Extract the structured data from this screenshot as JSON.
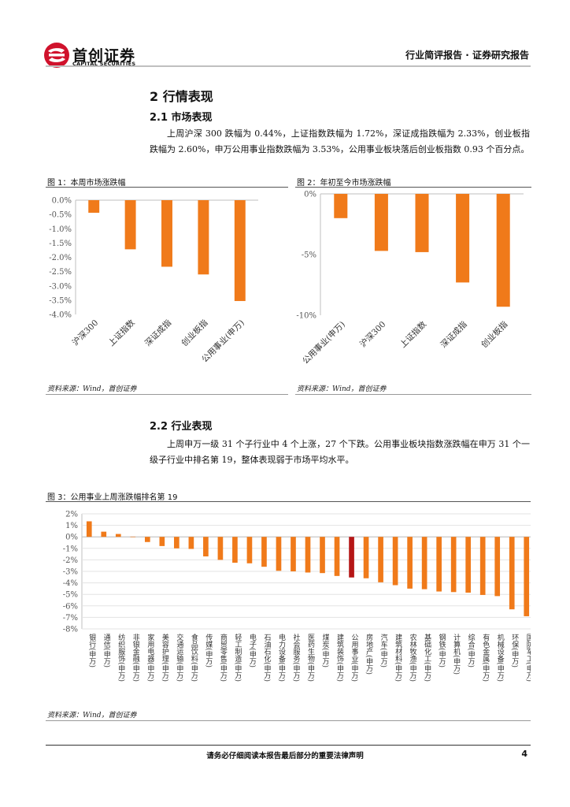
{
  "header": {
    "logo_cn": "首创证券",
    "logo_en": "CAPITAL SECURITIES",
    "report_type": "行业简评报告 · 证券研究报告",
    "brand_color": "#d0122c"
  },
  "section2": {
    "title": "2 行情表现"
  },
  "section2_1": {
    "title": "2.1 市场表现",
    "paragraph": "上周沪深 300 跌幅为 0.44%，上证指数跌幅为 1.72%，深证成指跌幅为 2.33%，创业板指跌幅为 2.60%，申万公用事业指数跌幅为 3.53%，公用事业板块落后创业板指数 0.93 个百分点。"
  },
  "section2_2": {
    "title": "2.2 行业表现",
    "paragraph": "上周申万一级 31 个子行业中 4 个上涨，27 个下跌。公用事业板块指数涨跌幅在申万 31 个一级子行业中排名第 19，整体表现弱于市场平均水平。"
  },
  "figures": {
    "fig1_title": "图 1：本周市场涨跌幅",
    "fig2_title": "图 2：年初至今市场涨跌幅",
    "fig3_title": "图 3：公用事业上周涨跌幅排名第 19",
    "source": "资料来源：Wind，首创证券"
  },
  "footer": {
    "disclaimer": "请务必仔细阅读本报告最后部分的重要法律声明",
    "page_number": "4"
  },
  "chart_data": [
    {
      "type": "bar",
      "title": "图 1：本周市场涨跌幅",
      "categories": [
        "沪深300",
        "上证指数",
        "深证成指",
        "创业板指",
        "公用事业(申万)"
      ],
      "values": [
        -0.44,
        -1.72,
        -2.33,
        -2.6,
        -3.53
      ],
      "unit": "%",
      "ylim": [
        -4.0,
        0.0
      ],
      "yticks": [
        "0.0%",
        "-0.5%",
        "-1.0%",
        "-1.5%",
        "-2.0%",
        "-2.5%",
        "-3.0%",
        "-3.5%",
        "-4.0%"
      ],
      "color": "#f07a1a",
      "grid": false
    },
    {
      "type": "bar",
      "title": "图 2：年初至今市场涨跌幅",
      "categories": [
        "公用事业(申万)",
        "沪深300",
        "上证指数",
        "深证成指",
        "创业板指"
      ],
      "values": [
        -2.0,
        -4.7,
        -4.8,
        -7.3,
        -9.3
      ],
      "unit": "%",
      "ylim": [
        -10,
        0
      ],
      "yticks": [
        "0%",
        "-5%",
        "-10%"
      ],
      "color": "#f07a1a",
      "grid": false
    },
    {
      "type": "bar",
      "title": "图 3：公用事业上周涨跌幅排名第 19",
      "categories": [
        "银行(申万)",
        "通信(申万)",
        "纺织服饰(申万)",
        "非银金融(申万)",
        "家用电器(申万)",
        "美容护理(申万)",
        "交通运输(申万)",
        "食品饮料(申万)",
        "传媒(申万)",
        "商贸零售(申万)",
        "轻工制造(申万)",
        "电子(申万)",
        "石油石化(申万)",
        "电力设备(申万)",
        "社会服务(申万)",
        "医药生物(申万)",
        "煤炭(申万)",
        "建筑装饰(申万)",
        "公用事业(申万)",
        "房地产(申万)",
        "汽车(申万)",
        "建筑材料(申万)",
        "农林牧渔(申万)",
        "基础化工(申万)",
        "钢铁(申万)",
        "计算机(申万)",
        "综合(申万)",
        "有色金属(申万)",
        "机械设备(申万)",
        "环保(申万)",
        "国防军工(申万)"
      ],
      "values": [
        1.35,
        0.45,
        0.25,
        0.02,
        -0.45,
        -0.8,
        -1.0,
        -1.05,
        -1.7,
        -2.0,
        -2.25,
        -2.3,
        -2.6,
        -2.95,
        -3.0,
        -3.1,
        -3.15,
        -3.4,
        -3.53,
        -3.6,
        -3.95,
        -4.2,
        -4.5,
        -4.55,
        -4.75,
        -4.8,
        -4.85,
        -5.05,
        -5.15,
        -6.3,
        -6.9
      ],
      "unit": "%",
      "ylim": [
        -8,
        2
      ],
      "yticks": [
        "2%",
        "1%",
        "0%",
        "-1%",
        "-2%",
        "-3%",
        "-4%",
        "-5%",
        "-6%",
        "-7%",
        "-8%"
      ],
      "color": "#f07a1a",
      "highlight_color": "#b51616",
      "highlight_index": 18,
      "grid": true
    }
  ]
}
